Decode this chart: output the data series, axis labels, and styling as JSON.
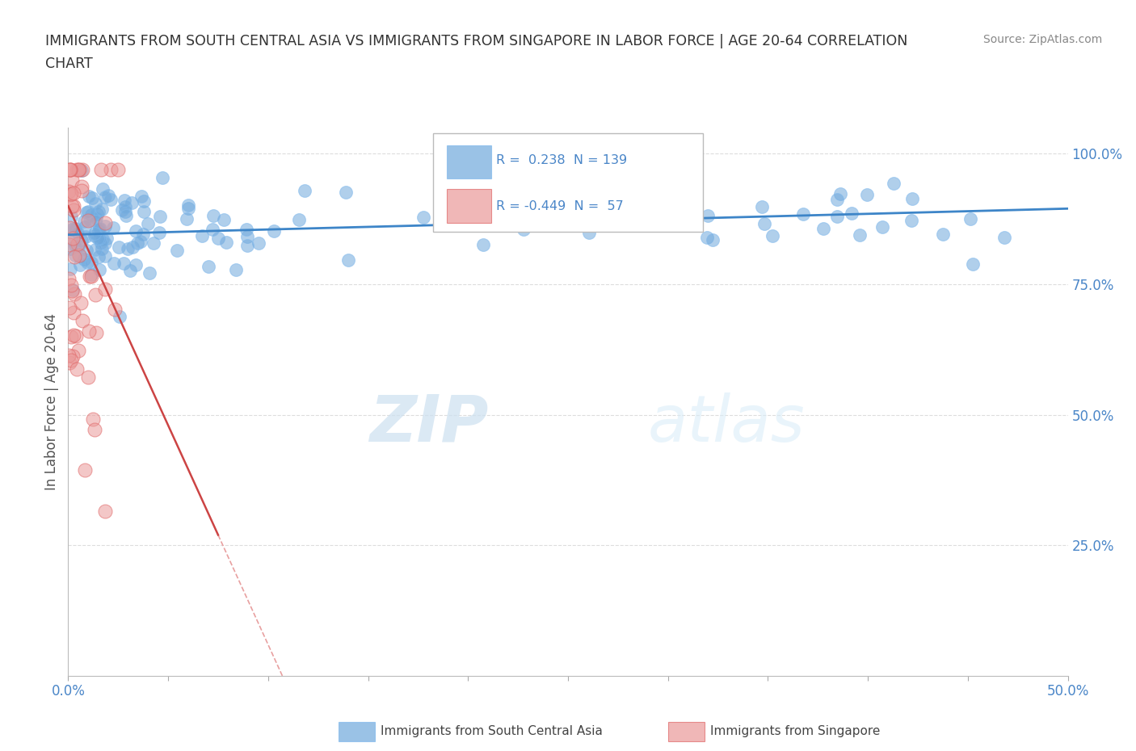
{
  "title_line1": "IMMIGRANTS FROM SOUTH CENTRAL ASIA VS IMMIGRANTS FROM SINGAPORE IN LABOR FORCE | AGE 20-64 CORRELATION",
  "title_line2": "CHART",
  "source_text": "Source: ZipAtlas.com",
  "ylabel": "In Labor Force | Age 20-64",
  "xlim": [
    0.0,
    0.5
  ],
  "ylim": [
    0.0,
    1.05
  ],
  "yticks_right": [
    0.25,
    0.5,
    0.75,
    1.0
  ],
  "ytick_labels_right": [
    "25.0%",
    "50.0%",
    "75.0%",
    "100.0%"
  ],
  "blue_R": 0.238,
  "blue_N": 139,
  "pink_R": -0.449,
  "pink_N": 57,
  "blue_color": "#6fa8dc",
  "blue_edge": "#7fb8ec",
  "pink_color": "#ea9999",
  "pink_edge": "#e06666",
  "trend_blue_color": "#3d85c8",
  "trend_pink_solid_color": "#cc4444",
  "trend_pink_dash_color": "#e8a0a0",
  "legend_label_blue": "Immigrants from South Central Asia",
  "legend_label_pink": "Immigrants from Singapore",
  "watermark_zip": "ZIP",
  "watermark_atlas": "atlas",
  "background_color": "#ffffff",
  "title_color": "#333333",
  "right_tick_color": "#4a86c8",
  "xtick_color": "#4a86c8"
}
